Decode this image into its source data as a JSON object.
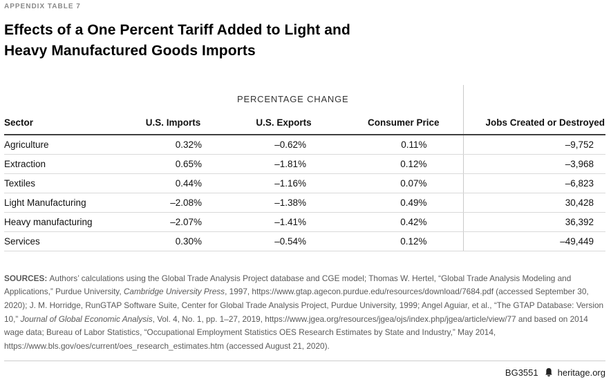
{
  "page": {
    "kicker": "APPENDIX TABLE 7",
    "title_line1": "Effects of a One Percent Tariff Added to Light and",
    "title_line2": "Heavy Manufactured Goods Imports"
  },
  "table": {
    "group_header": "PERCENTAGE CHANGE",
    "columns": [
      "Sector",
      "U.S. Imports",
      "U.S. Exports",
      "Consumer Price",
      "Jobs Created or Destroyed"
    ],
    "rows": [
      [
        "Agriculture",
        "0.32%",
        "–0.62%",
        "0.11%",
        "–9,752"
      ],
      [
        "Extraction",
        "0.65%",
        "–1.81%",
        "0.12%",
        "–3,968"
      ],
      [
        "Textiles",
        "0.44%",
        "–1.16%",
        "0.07%",
        "–6,823"
      ],
      [
        "Light Manufacturing",
        "–2.08%",
        "–1.38%",
        "0.49%",
        "30,428"
      ],
      [
        "Heavy manufacturing",
        "–2.07%",
        "–1.41%",
        "0.42%",
        "36,392"
      ],
      [
        "Services",
        "0.30%",
        "–0.54%",
        "0.12%",
        "–49,449"
      ]
    ]
  },
  "sources": {
    "segments": [
      {
        "text": "SOURCES: ",
        "style": "bold"
      },
      {
        "text": "Authors’ calculations using the Global Trade Analysis Project database and CGE model; Thomas W. Hertel, “Global Trade Analysis Modeling and Applications,” Purdue University, ",
        "style": "normal"
      },
      {
        "text": "Cambridge University Press",
        "style": "italic"
      },
      {
        "text": ", 1997, https://www.gtap.agecon.purdue.edu/resources/download/7684.pdf (accessed September 30, 2020); J. M. Horridge, RunGTAP Software Suite, Center for Global Trade Analysis Project, Purdue University, 1999; Angel Aguiar, et al., “The GTAP Database: Version 10,” ",
        "style": "normal"
      },
      {
        "text": "Journal of Global Economic Analysis",
        "style": "italic"
      },
      {
        "text": ", Vol. 4, No. 1, pp. 1–27, 2019, https://www.jgea.org/resources/jgea/ojs/index.php/jgea/article/view/77 and based on 2014 wage data; Bureau of Labor Statistics, “Occupational Employment Statistics OES Research Estimates by State and Industry,” May 2014, https://www.bls.gov/oes/current/oes_research_estimates.htm (accessed August 21, 2020).",
        "style": "normal"
      }
    ]
  },
  "footer": {
    "report_id": "BG3551",
    "site": "heritage.org",
    "icon": "liberty-bell-icon"
  },
  "colors": {
    "kicker_text": "#8a8a8a",
    "title_text": "#000000",
    "header_rule": "#3f3f3f",
    "row_rule": "#d9d9d9",
    "column_divider": "#c9c9c9",
    "sources_text": "#595959",
    "background": "#ffffff"
  }
}
